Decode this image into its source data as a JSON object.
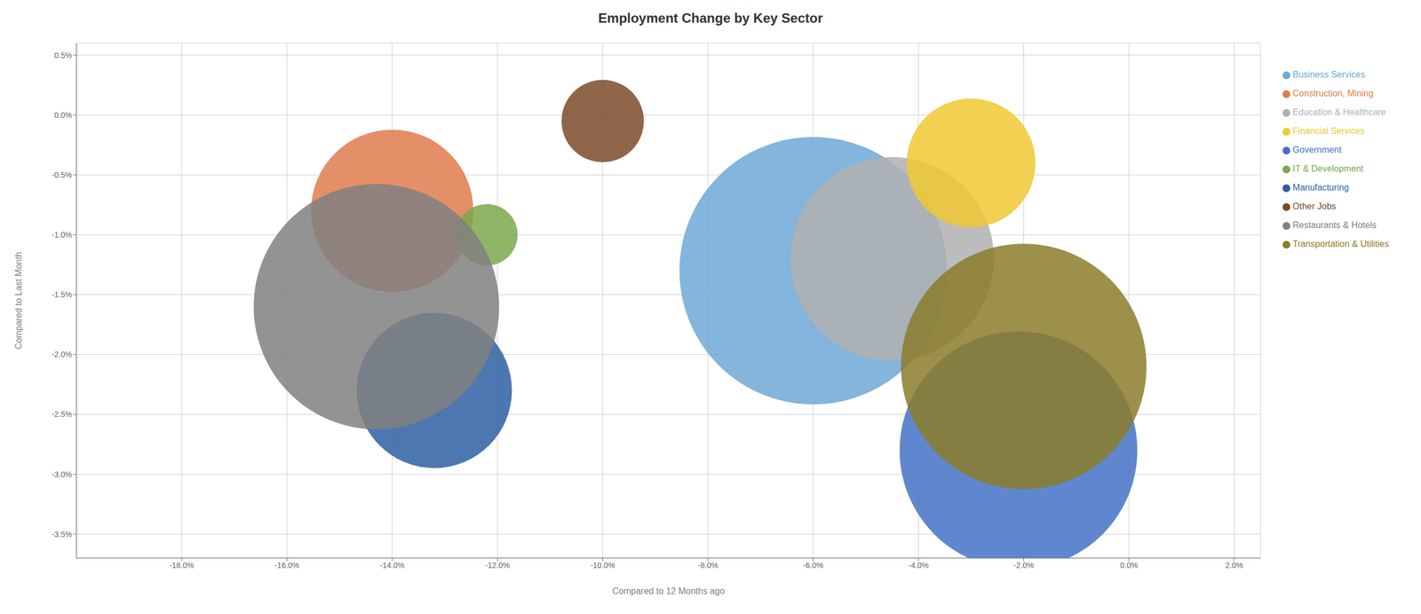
{
  "chart_data": {
    "type": "scatter",
    "title": "Employment Change by Key Sector",
    "xlabel": "Compared to 12 Months ago",
    "ylabel": "Compared to Last Month",
    "xlim": [
      -0.2,
      0.025
    ],
    "ylim": [
      -0.037,
      0.006
    ],
    "xticks": [
      {
        "value": -0.18,
        "label": "-18.0%"
      },
      {
        "value": -0.16,
        "label": "-16.0%"
      },
      {
        "value": -0.14,
        "label": "-14.0%"
      },
      {
        "value": -0.12,
        "label": "-12.0%"
      },
      {
        "value": -0.1,
        "label": "-10.0%"
      },
      {
        "value": -0.08,
        "label": "-8.0%"
      },
      {
        "value": -0.06,
        "label": "-6.0%"
      },
      {
        "value": -0.04,
        "label": "-4.0%"
      },
      {
        "value": -0.02,
        "label": "-2.0%"
      },
      {
        "value": 0.0,
        "label": "0.0%"
      },
      {
        "value": 0.02,
        "label": "2.0%"
      }
    ],
    "yticks": [
      {
        "value": 0.005,
        "label": "0.5%"
      },
      {
        "value": 0.0,
        "label": "0.0%"
      },
      {
        "value": -0.01,
        "label": "-1.0%"
      },
      {
        "value": -0.005,
        "label": "-0.5%"
      },
      {
        "value": -0.015,
        "label": "-1.5%"
      },
      {
        "value": -0.02,
        "label": "-2.0%"
      },
      {
        "value": -0.025,
        "label": "-2.5%"
      },
      {
        "value": -0.03,
        "label": "-3.0%"
      },
      {
        "value": -0.035,
        "label": "-3.5%"
      }
    ],
    "grid": true,
    "legend": "right",
    "series": [
      {
        "name": "Business Services",
        "color": "#6fa8d6",
        "x": [
          -0.06
        ],
        "y": [
          -0.013
        ],
        "size": [
          95000
        ]
      },
      {
        "name": "Construction, Mining",
        "color": "#e07b4f",
        "x": [
          -0.14
        ],
        "y": [
          -0.008
        ],
        "size": [
          35000
        ]
      },
      {
        "name": "Education & Healthcare",
        "color": "#b0b0b0",
        "x": [
          -0.045
        ],
        "y": [
          -0.012
        ],
        "size": [
          55000
        ]
      },
      {
        "name": "Financial Services",
        "color": "#f0c832",
        "x": [
          -0.03
        ],
        "y": [
          -0.004
        ],
        "size": [
          22000
        ]
      },
      {
        "name": "Government",
        "color": "#4472c4",
        "x": [
          -0.021
        ],
        "y": [
          -0.028
        ],
        "size": [
          75000
        ]
      },
      {
        "name": "IT & Development",
        "color": "#7ba84b",
        "x": [
          -0.122
        ],
        "y": [
          -0.01
        ],
        "size": [
          5000
        ]
      },
      {
        "name": "Manufacturing",
        "color": "#2e5fa3",
        "x": [
          -0.132
        ],
        "y": [
          -0.023
        ],
        "size": [
          32000
        ]
      },
      {
        "name": "Other Jobs",
        "color": "#7b4b2a",
        "x": [
          -0.1
        ],
        "y": [
          -0.0005
        ],
        "size": [
          9000
        ]
      },
      {
        "name": "Restaurants & Hotels",
        "color": "#808080",
        "x": [
          -0.143
        ],
        "y": [
          -0.016
        ],
        "size": [
          80000
        ]
      },
      {
        "name": "Transportation & Utilities",
        "color": "#8b7d2a",
        "x": [
          -0.02
        ],
        "y": [
          -0.021
        ],
        "size": [
          80000
        ]
      }
    ]
  }
}
